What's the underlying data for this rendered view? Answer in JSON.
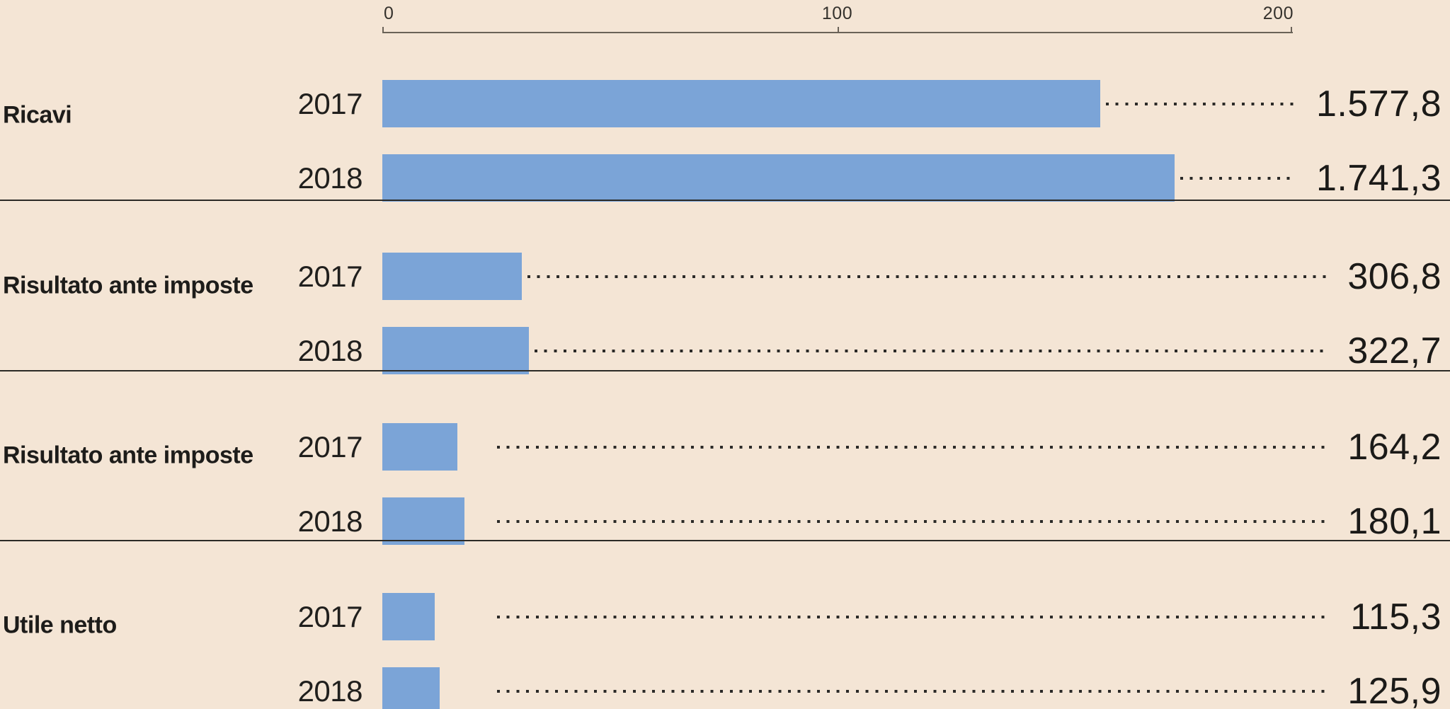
{
  "colors": {
    "background": "#f4e5d5",
    "bar": "#7ba4d7",
    "text": "#1d1c1a",
    "divider": "#2b2a26",
    "axis_line": "#6a6257",
    "dots": "#2b2a28"
  },
  "chart_data": {
    "type": "bar",
    "orientation": "horizontal",
    "axis": {
      "tick_labels": [
        "0",
        "100",
        "200"
      ],
      "ticks": [
        0,
        100,
        200
      ],
      "max": 200,
      "value_divisor": 10,
      "note": "bar lengths are plotted as value/10 on the 0-200 scale; grid off; dotted leader lines connect bars to value labels"
    },
    "sections": [
      {
        "label": "Ricavi",
        "rows": [
          {
            "year": "2017",
            "value": 1577.8,
            "display": "1.577,8"
          },
          {
            "year": "2018",
            "value": 1741.3,
            "display": "1.741,3"
          }
        ]
      },
      {
        "label": "Risultato ante imposte",
        "rows": [
          {
            "year": "2017",
            "value": 306.8,
            "display": "306,8"
          },
          {
            "year": "2018",
            "value": 322.7,
            "display": "322,7"
          }
        ]
      },
      {
        "label": "Risultato ante imposte",
        "rows": [
          {
            "year": "2017",
            "value": 164.2,
            "display": "164,2"
          },
          {
            "year": "2018",
            "value": 180.1,
            "display": "180,1"
          }
        ]
      },
      {
        "label": "Utile netto",
        "rows": [
          {
            "year": "2017",
            "value": 115.3,
            "display": "115,3"
          },
          {
            "year": "2018",
            "value": 125.9,
            "display": "125,9"
          }
        ]
      }
    ]
  }
}
